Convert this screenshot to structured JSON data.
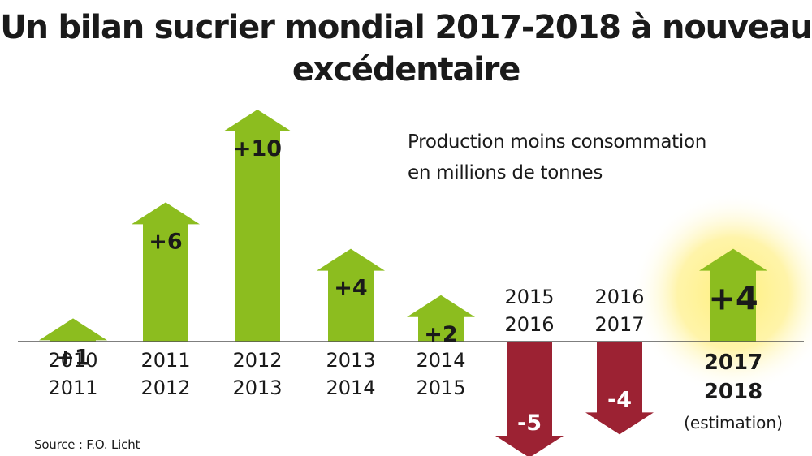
{
  "title_line1": "Un bilan sucrier mondial 2017-2018 à nouveau",
  "title_line2": "excédentaire",
  "subtitle_line1": "Production moins consommation",
  "subtitle_line2": "en millions de tonnes",
  "source": "Source : F.O. Licht",
  "colors": {
    "positive": "#8cbd1f",
    "negative": "#9c2233",
    "highlight_glow": "#fff07a",
    "baseline": "#555555"
  },
  "chart_data": {
    "type": "bar",
    "title": "Un bilan sucrier mondial 2017-2018 à nouveau excédentaire",
    "ylabel": "Production moins consommation en millions de tonnes",
    "categories": [
      [
        "2010",
        "2011"
      ],
      [
        "2011",
        "2012"
      ],
      [
        "2012",
        "2013"
      ],
      [
        "2013",
        "2014"
      ],
      [
        "2014",
        "2015"
      ],
      [
        "2015",
        "2016"
      ],
      [
        "2016",
        "2017"
      ],
      [
        "2017",
        "2018"
      ]
    ],
    "values": [
      1,
      6,
      10,
      4,
      2,
      -5,
      -4,
      4
    ],
    "value_labels": [
      "+1",
      "+6",
      "+10",
      "+4",
      "+2",
      "-5",
      "-4",
      "+4"
    ],
    "highlight_index": 7,
    "highlight_note": "(estimation)",
    "ylim": [
      -5,
      10
    ]
  }
}
